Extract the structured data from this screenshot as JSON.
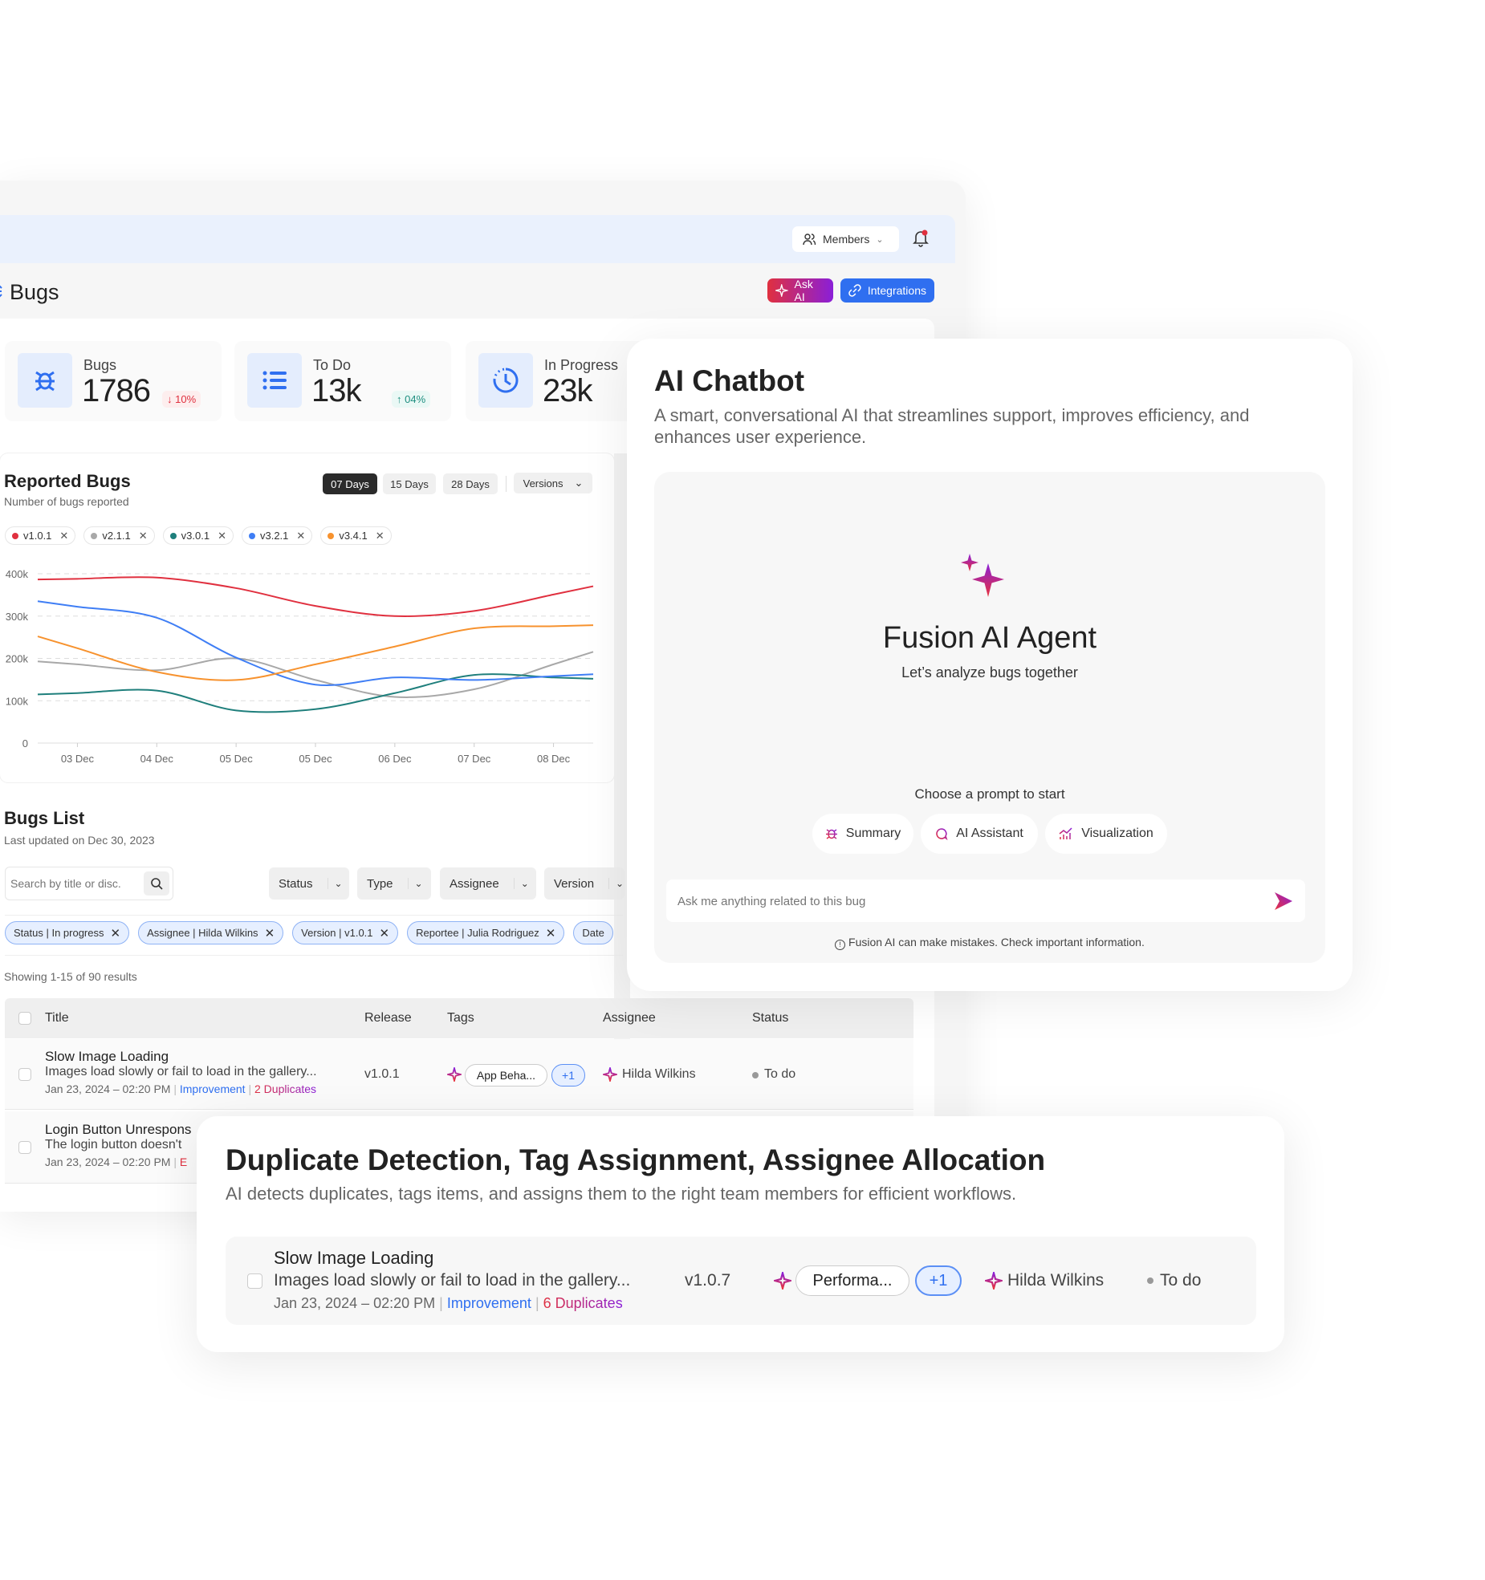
{
  "header": {
    "members_label": "Members"
  },
  "page": {
    "title": "Bugs",
    "ask_ai": "Ask AI",
    "integrations": "Integrations"
  },
  "stats": [
    {
      "label": "Bugs",
      "value": "1786",
      "change": "10%",
      "direction": "down",
      "icon": "bug-icon"
    },
    {
      "label": "To Do",
      "value": "13k",
      "change": "04%",
      "direction": "up",
      "icon": "list-icon"
    },
    {
      "label": "In Progress",
      "value": "23k",
      "icon": "clock-icon"
    }
  ],
  "reported": {
    "title": "Reported Bugs",
    "subtitle": "Number of bugs reported",
    "ranges": [
      "07 Days",
      "15 Days",
      "28 Days"
    ],
    "active_range": "07 Days",
    "versions_label": "Versions"
  },
  "chart_data": {
    "type": "line",
    "title": "Reported Bugs",
    "categories": [
      "03 Dec",
      "04 Dec",
      "05 Dec",
      "05 Dec",
      "06 Dec",
      "07 Dec",
      "08 Dec"
    ],
    "yticks": [
      "0",
      "100k",
      "200k",
      "300k",
      "400k"
    ],
    "ylim": [
      0,
      400000
    ],
    "grid": "horizontal dashed",
    "legend": "top-left",
    "series": [
      {
        "name": "v1.0.1",
        "color": "#e0303f",
        "values": [
          388000,
          391000,
          366000,
          324000,
          300000,
          312000,
          351000
        ]
      },
      {
        "name": "v2.1.1",
        "color": "#a8a8a8",
        "values": [
          186000,
          172000,
          200000,
          149000,
          109000,
          127000,
          186000
        ]
      },
      {
        "name": "v3.0.1",
        "color": "#1f7f7c",
        "values": [
          118000,
          124000,
          77000,
          80000,
          118000,
          161000,
          155000
        ]
      },
      {
        "name": "v3.2.1",
        "color": "#3f7ef5",
        "values": [
          322000,
          296000,
          202000,
          138000,
          155000,
          149000,
          158000
        ]
      },
      {
        "name": "v3.4.1",
        "color": "#f7922e",
        "values": [
          224000,
          168000,
          149000,
          186000,
          228000,
          271000,
          276000
        ]
      }
    ]
  },
  "bugs_list": {
    "title": "Bugs List",
    "subtitle": "Last updated on Dec 30, 2023",
    "search_placeholder": "Search by title or disc.",
    "filters": [
      "Status",
      "Type",
      "Assignee",
      "Version"
    ],
    "active_filters": [
      "Status | In progress",
      "Assignee | Hilda Wilkins",
      "Version | v1.0.1",
      "Reportee | Julia Rodriguez",
      "Date"
    ],
    "results": "Showing 1-15 of 90 results",
    "columns": [
      "Title",
      "Release",
      "Tags",
      "Assignee",
      "Status"
    ],
    "rows": [
      {
        "title": "Slow Image Loading",
        "desc": "Images load slowly or fail to load in the gallery...",
        "date": "Jan 23, 2024 – 02:20 PM",
        "type": "Improvement",
        "dupes": "2 Duplicates",
        "release": "v1.0.1",
        "tag": "App Beha...",
        "more": "+1",
        "assignee": "Hilda Wilkins",
        "status": "To do"
      },
      {
        "title": "Login Button Unrespons",
        "desc": "The login button doesn't",
        "date": "Jan 23, 2024 – 02:20 PM",
        "type": "E"
      }
    ]
  },
  "chatbot": {
    "title": "AI Chatbot",
    "description": "A smart, conversational AI that streamlines support, improves efficiency, and enhances user experience.",
    "agent_name": "Fusion AI Agent",
    "agent_tagline": "Let’s analyze bugs together",
    "prompt_heading": "Choose a prompt to start",
    "prompts": [
      "Summary",
      "AI Assistant",
      "Visualization"
    ],
    "input_placeholder": "Ask me anything related to this bug",
    "disclaimer": "Fusion AI can make mistakes. Check important information."
  },
  "duplicate": {
    "title": "Duplicate Detection, Tag Assignment, Assignee Allocation",
    "subtitle": "AI detects duplicates, tags items, and assigns them to the right team members for efficient workflows.",
    "row": {
      "title": "Slow Image Loading",
      "desc": "Images load slowly or fail to load in the gallery...",
      "date": "Jan 23, 2024 – 02:20 PM",
      "type": "Improvement",
      "dupes": "6 Duplicates",
      "release": "v1.0.7",
      "tag": "Performa...",
      "more": "+1",
      "assignee": "Hilda Wilkins",
      "status": "To do"
    }
  },
  "colors": {
    "accent": "#2f6ff0",
    "ai_gradient": [
      "#e0303f",
      "#8a1fd8"
    ],
    "header_bg": "#eaf1fd"
  }
}
